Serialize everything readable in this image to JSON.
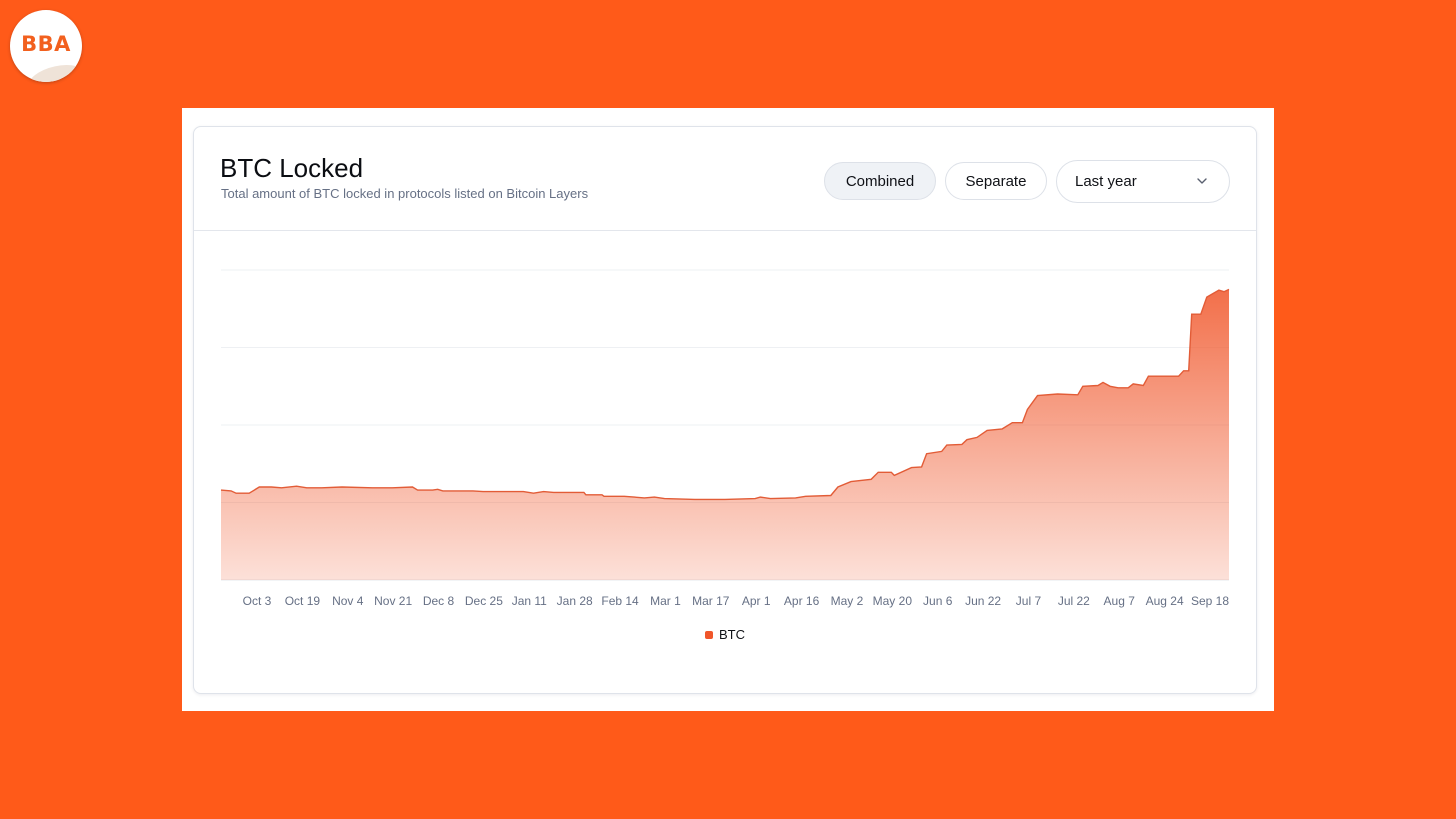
{
  "brand": {
    "logo_text": "BBA"
  },
  "header": {
    "title": "BTC Locked",
    "subtitle": "Total amount of BTC locked in protocols listed on Bitcoin Layers"
  },
  "controls": {
    "combined_label": "Combined",
    "separate_label": "Separate",
    "range_value": "Last year",
    "active_view": "Combined"
  },
  "colors": {
    "background": "#FF5A19",
    "series": "#F0562A",
    "line": "#E25C37"
  },
  "chart_data": {
    "type": "area",
    "title": "BTC Locked",
    "x_tick_labels": [
      "Oct 3",
      "Oct 19",
      "Nov 4",
      "Nov 21",
      "Dec 8",
      "Dec 25",
      "Jan 11",
      "Jan 28",
      "Feb 14",
      "Mar 1",
      "Mar 17",
      "Apr 1",
      "Apr 16",
      "May 2",
      "May 20",
      "Jun 6",
      "Jun 22",
      "Jul 7",
      "Jul 22",
      "Aug 7",
      "Aug 24",
      "Sep 18"
    ],
    "y_axis_labels_shown": false,
    "ylim": [
      0,
      4
    ],
    "grid": "horizontal",
    "legend_position": "bottom-center",
    "series": [
      {
        "name": "BTC",
        "points": [
          [
            0,
            1.16
          ],
          [
            0.01,
            1.15
          ],
          [
            0.015,
            1.12
          ],
          [
            0.028,
            1.12
          ],
          [
            0.038,
            1.2
          ],
          [
            0.05,
            1.2
          ],
          [
            0.06,
            1.19
          ],
          [
            0.075,
            1.21
          ],
          [
            0.085,
            1.19
          ],
          [
            0.1,
            1.19
          ],
          [
            0.12,
            1.2
          ],
          [
            0.15,
            1.19
          ],
          [
            0.17,
            1.19
          ],
          [
            0.19,
            1.2
          ],
          [
            0.195,
            1.16
          ],
          [
            0.21,
            1.16
          ],
          [
            0.215,
            1.17
          ],
          [
            0.22,
            1.15
          ],
          [
            0.25,
            1.15
          ],
          [
            0.26,
            1.14
          ],
          [
            0.3,
            1.14
          ],
          [
            0.31,
            1.12
          ],
          [
            0.32,
            1.14
          ],
          [
            0.33,
            1.13
          ],
          [
            0.36,
            1.13
          ],
          [
            0.362,
            1.1
          ],
          [
            0.378,
            1.1
          ],
          [
            0.38,
            1.08
          ],
          [
            0.4,
            1.08
          ],
          [
            0.42,
            1.06
          ],
          [
            0.43,
            1.07
          ],
          [
            0.44,
            1.05
          ],
          [
            0.47,
            1.04
          ],
          [
            0.5,
            1.04
          ],
          [
            0.53,
            1.05
          ],
          [
            0.535,
            1.07
          ],
          [
            0.545,
            1.05
          ],
          [
            0.57,
            1.06
          ],
          [
            0.58,
            1.08
          ],
          [
            0.605,
            1.09
          ],
          [
            0.612,
            1.2
          ],
          [
            0.625,
            1.27
          ],
          [
            0.645,
            1.3
          ],
          [
            0.652,
            1.39
          ],
          [
            0.665,
            1.39
          ],
          [
            0.668,
            1.35
          ],
          [
            0.685,
            1.45
          ],
          [
            0.695,
            1.46
          ],
          [
            0.7,
            1.63
          ],
          [
            0.715,
            1.66
          ],
          [
            0.72,
            1.74
          ],
          [
            0.735,
            1.75
          ],
          [
            0.74,
            1.81
          ],
          [
            0.75,
            1.84
          ],
          [
            0.76,
            1.93
          ],
          [
            0.775,
            1.95
          ],
          [
            0.785,
            2.03
          ],
          [
            0.795,
            2.03
          ],
          [
            0.8,
            2.2
          ],
          [
            0.81,
            2.38
          ],
          [
            0.83,
            2.4
          ],
          [
            0.85,
            2.39
          ],
          [
            0.855,
            2.5
          ],
          [
            0.87,
            2.51
          ],
          [
            0.875,
            2.55
          ],
          [
            0.882,
            2.5
          ],
          [
            0.89,
            2.48
          ],
          [
            0.9,
            2.48
          ],
          [
            0.905,
            2.53
          ],
          [
            0.915,
            2.51
          ],
          [
            0.92,
            2.63
          ],
          [
            0.95,
            2.63
          ],
          [
            0.955,
            2.7
          ],
          [
            0.96,
            2.7
          ],
          [
            0.963,
            3.43
          ],
          [
            0.972,
            3.43
          ],
          [
            0.978,
            3.65
          ],
          [
            0.99,
            3.74
          ],
          [
            0.995,
            3.72
          ],
          [
            1,
            3.75
          ]
        ]
      }
    ]
  }
}
